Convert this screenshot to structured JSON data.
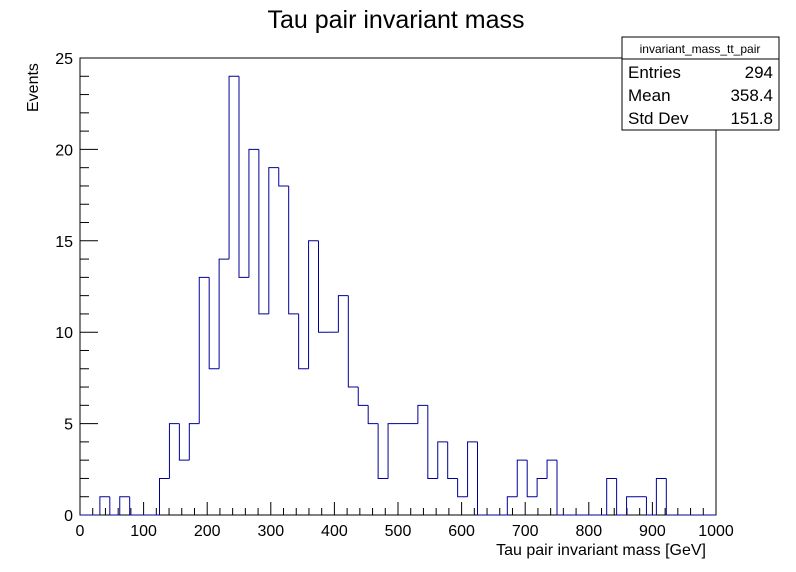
{
  "chart_data": {
    "type": "bar",
    "title": "Tau pair invariant mass",
    "xlabel": "Tau pair invariant mass [GeV]",
    "ylabel": "Events",
    "xlim": [
      0,
      1000
    ],
    "ylim": [
      0,
      25
    ],
    "x_ticks": [
      0,
      100,
      200,
      300,
      400,
      500,
      600,
      700,
      800,
      900,
      1000
    ],
    "y_ticks": [
      0,
      5,
      10,
      15,
      20,
      25
    ],
    "bin_width": 15.625,
    "bin_edges_start": 0,
    "values": [
      0,
      0,
      1,
      0,
      1,
      0,
      0,
      0,
      2,
      5,
      3,
      5,
      13,
      8,
      14,
      24,
      13,
      20,
      11,
      19,
      18,
      11,
      8,
      15,
      10,
      10,
      12,
      7,
      6,
      5,
      2,
      5,
      5,
      5,
      6,
      2,
      4,
      2,
      1,
      4,
      0,
      0,
      0,
      1,
      3,
      1,
      2,
      3,
      0,
      0,
      0,
      0,
      0,
      2,
      0,
      1,
      1,
      0,
      2,
      0,
      0,
      0,
      0,
      0
    ],
    "line_color": "#000099",
    "grid": false,
    "legend": "none"
  },
  "stats_box": {
    "name": "invariant_mass_tt_pair",
    "rows": [
      {
        "label": "Entries",
        "value": "294"
      },
      {
        "label": "Mean",
        "value": "358.4"
      },
      {
        "label": "Std Dev",
        "value": "151.8"
      }
    ]
  }
}
